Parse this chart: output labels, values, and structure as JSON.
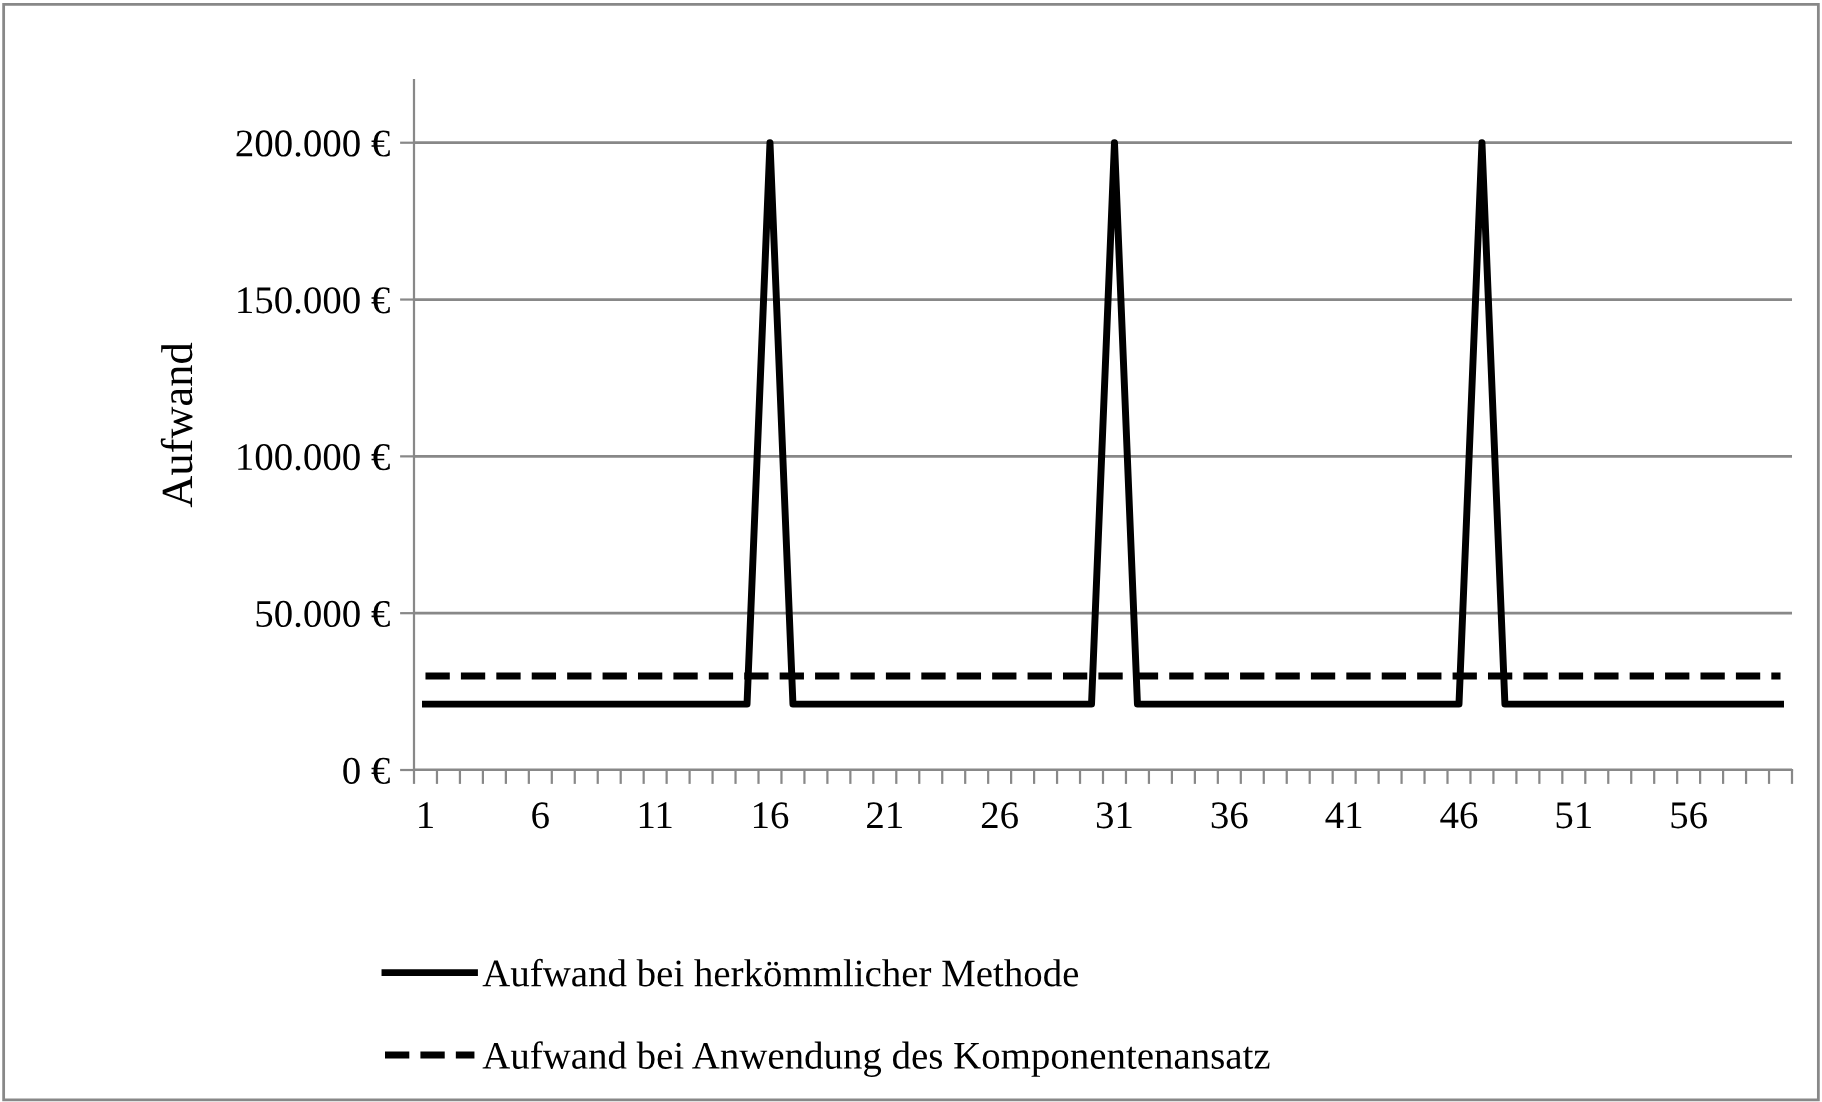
{
  "chart_data": {
    "type": "line",
    "ylabel": "Aufwand",
    "categories": [
      "1",
      null,
      null,
      null,
      null,
      "6",
      null,
      null,
      null,
      null,
      "11",
      null,
      null,
      null,
      null,
      "16",
      null,
      null,
      null,
      null,
      "21",
      null,
      null,
      null,
      null,
      "26",
      null,
      null,
      null,
      null,
      "31",
      null,
      null,
      null,
      null,
      "36",
      null,
      null,
      null,
      null,
      "41",
      null,
      null,
      null,
      null,
      "46",
      null,
      null,
      null,
      null,
      "51",
      null,
      null,
      null,
      null,
      "56",
      null,
      null,
      null,
      null
    ],
    "series": [
      {
        "name": "Aufwand bei herkömmlicher Methode",
        "color": "#000000",
        "line_style": "solid",
        "values": [
          21000,
          21000,
          21000,
          21000,
          21000,
          21000,
          21000,
          21000,
          21000,
          21000,
          21000,
          21000,
          21000,
          21000,
          21000,
          200000,
          21000,
          21000,
          21000,
          21000,
          21000,
          21000,
          21000,
          21000,
          21000,
          21000,
          21000,
          21000,
          21000,
          21000,
          200000,
          21000,
          21000,
          21000,
          21000,
          21000,
          21000,
          21000,
          21000,
          21000,
          21000,
          21000,
          21000,
          21000,
          21000,
          21000,
          200000,
          21000,
          21000,
          21000,
          21000,
          21000,
          21000,
          21000,
          21000,
          21000,
          21000,
          21000,
          21000,
          21000
        ]
      },
      {
        "name": "Aufwand bei Anwendung des Komponentenansatz",
        "color": "#000000",
        "line_style": "dashed",
        "values": [
          30000,
          30000,
          30000,
          30000,
          30000,
          30000,
          30000,
          30000,
          30000,
          30000,
          30000,
          30000,
          30000,
          30000,
          30000,
          30000,
          30000,
          30000,
          30000,
          30000,
          30000,
          30000,
          30000,
          30000,
          30000,
          30000,
          30000,
          30000,
          30000,
          30000,
          30000,
          30000,
          30000,
          30000,
          30000,
          30000,
          30000,
          30000,
          30000,
          30000,
          30000,
          30000,
          30000,
          30000,
          30000,
          30000,
          30000,
          30000,
          30000,
          30000,
          30000,
          30000,
          30000,
          30000,
          30000,
          30000,
          30000,
          30000,
          30000,
          30000
        ]
      }
    ],
    "ylim": [
      0,
      220000
    ],
    "yticks": [
      {
        "value": 0,
        "label": "0 €"
      },
      {
        "value": 50000,
        "label": "50.000 €"
      },
      {
        "value": 100000,
        "label": "100.000 €"
      },
      {
        "value": 150000,
        "label": "150.000 €"
      },
      {
        "value": 200000,
        "label": "200.000 €"
      }
    ],
    "grid": "y",
    "legend": "bottom",
    "marker": "none"
  }
}
